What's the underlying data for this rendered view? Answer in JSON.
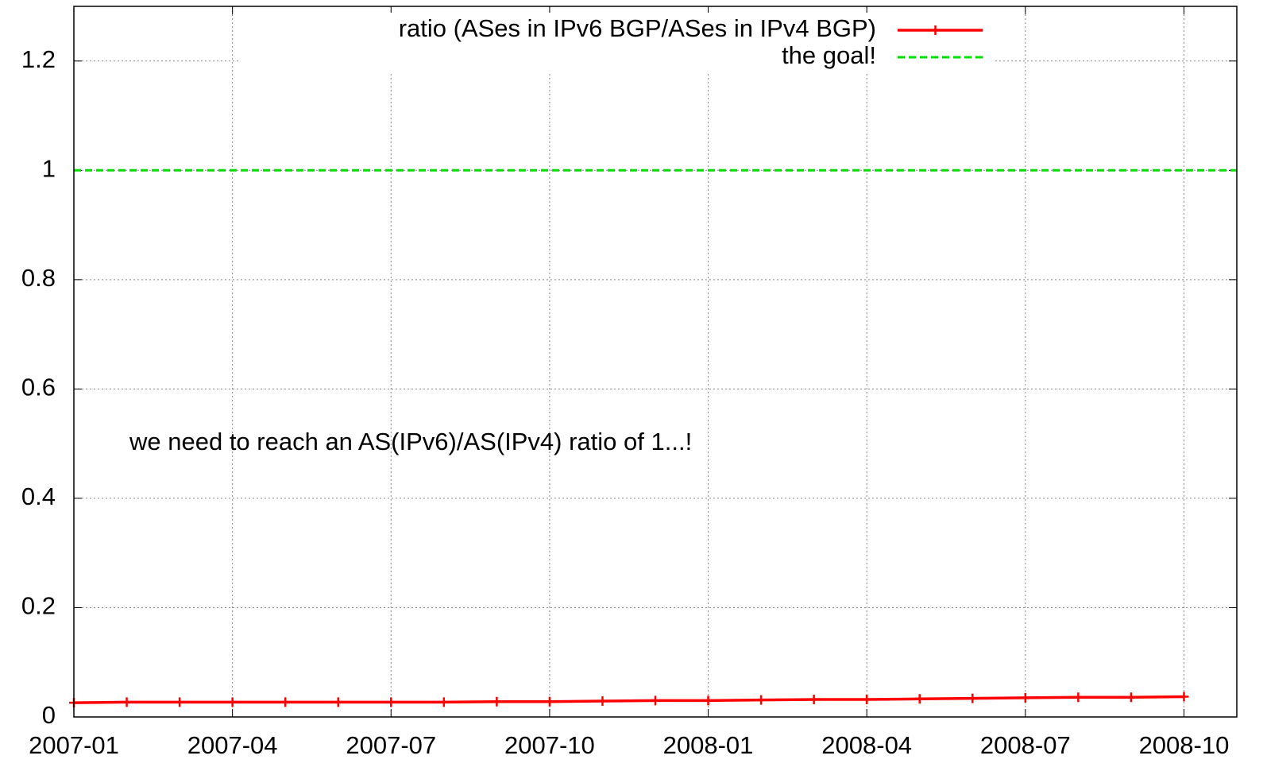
{
  "chart_data": {
    "type": "line",
    "x": [
      "2007-01",
      "2007-02",
      "2007-03",
      "2007-04",
      "2007-05",
      "2007-06",
      "2007-07",
      "2007-08",
      "2007-09",
      "2007-10",
      "2007-11",
      "2007-12",
      "2008-01",
      "2008-02",
      "2008-03",
      "2008-04",
      "2008-05",
      "2008-06",
      "2008-07",
      "2008-08",
      "2008-09",
      "2008-10"
    ],
    "series": [
      {
        "name": "ratio (ASes in IPv6 BGP/ASes in IPv4 BGP)",
        "color": "#ff0000",
        "values": [
          0.026,
          0.027,
          0.027,
          0.027,
          0.027,
          0.027,
          0.027,
          0.027,
          0.028,
          0.028,
          0.029,
          0.03,
          0.03,
          0.031,
          0.032,
          0.032,
          0.033,
          0.034,
          0.035,
          0.036,
          0.036,
          0.037
        ]
      },
      {
        "name": "the goal!",
        "color": "#00dd00",
        "dashed": true,
        "x": [
          "2007-01",
          "2008-11"
        ],
        "values": [
          1,
          1
        ]
      }
    ],
    "annotation": "we need to reach an AS(IPv6)/AS(IPv4) ratio of 1...!",
    "xlim": [
      "2007-01",
      "2008-11"
    ],
    "xticks": [
      "2007-01",
      "2007-04",
      "2007-07",
      "2007-10",
      "2008-01",
      "2008-04",
      "2008-07",
      "2008-10"
    ],
    "ylim": [
      0,
      1.3
    ],
    "yticks": [
      0,
      0.2,
      0.4,
      0.6,
      0.8,
      1,
      1.2
    ],
    "grid": true,
    "legend": "top-right"
  }
}
